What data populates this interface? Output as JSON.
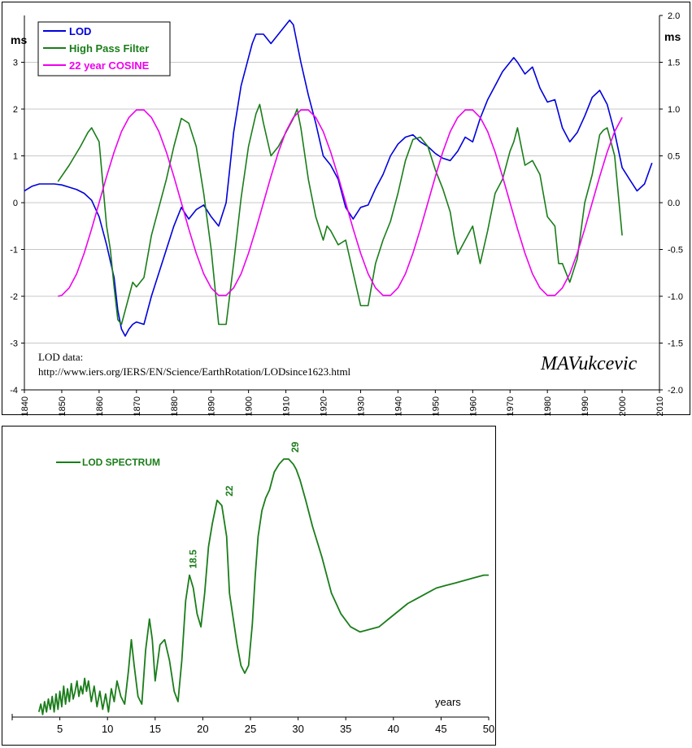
{
  "colors": {
    "lod": "#0000dd",
    "high_pass": "#1a7d1a",
    "cosine": "#ee00ee",
    "grid": "#c8c8c8",
    "spectrum": "#1a7d1a"
  },
  "chart_data": [
    {
      "type": "line",
      "title": "",
      "ylabel_left": "ms",
      "ylabel_right": "ms",
      "x_ticks": [
        "1840",
        "1850",
        "1860",
        "1870",
        "1880",
        "1890",
        "1900",
        "1910",
        "1920",
        "1930",
        "1940",
        "1950",
        "1960",
        "1970",
        "1980",
        "1990",
        "2000",
        "2010"
      ],
      "xlim": [
        1840,
        2010
      ],
      "ylim_left": [
        -4,
        4
      ],
      "y_ticks_left": [
        "-4",
        "-3",
        "-2",
        "-1",
        "0",
        "1",
        "2",
        "3"
      ],
      "ylim_right": [
        -2.0,
        2.0
      ],
      "y_ticks_right": [
        "-2.0",
        "-1.5",
        "-1.0",
        "-0.5",
        "0.0",
        "0.5",
        "1.0",
        "1.5",
        "2.0"
      ],
      "grid": "horizontal",
      "legend": "top-left",
      "legend_entries": [
        "LOD",
        "High Pass Filter",
        "22 year COSINE"
      ],
      "annotation_lines": [
        "LOD data:",
        "http://www.iers.org/IERS/EN/Science/EarthRotation/LODsince1623.html"
      ],
      "signature": "MAVukcevic",
      "series": [
        {
          "name": "LOD",
          "axis": "left",
          "x": [
            1840,
            1842,
            1844,
            1846,
            1848,
            1850,
            1852,
            1854,
            1856,
            1858,
            1860,
            1862,
            1864,
            1865,
            1866,
            1867,
            1868,
            1869,
            1870,
            1872,
            1874,
            1876,
            1878,
            1880,
            1882,
            1884,
            1886,
            1888,
            1890,
            1892,
            1894,
            1896,
            1898,
            1900,
            1901,
            1902,
            1904,
            1906,
            1908,
            1910,
            1911,
            1912,
            1913,
            1914,
            1916,
            1918,
            1920,
            1922,
            1924,
            1926,
            1928,
            1930,
            1932,
            1934,
            1936,
            1938,
            1940,
            1942,
            1944,
            1946,
            1948,
            1950,
            1952,
            1954,
            1956,
            1958,
            1960,
            1962,
            1964,
            1966,
            1968,
            1970,
            1971,
            1972,
            1974,
            1976,
            1978,
            1980,
            1982,
            1984,
            1986,
            1988,
            1990,
            1992,
            1994,
            1996,
            1998,
            2000,
            2002,
            2004,
            2006,
            2008
          ],
          "y": [
            0.25,
            0.35,
            0.4,
            0.4,
            0.4,
            0.38,
            0.33,
            0.28,
            0.2,
            0.05,
            -0.3,
            -0.9,
            -1.6,
            -2.3,
            -2.7,
            -2.85,
            -2.7,
            -2.6,
            -2.55,
            -2.6,
            -2.0,
            -1.5,
            -1.0,
            -0.5,
            -0.1,
            -0.35,
            -0.15,
            -0.05,
            -0.3,
            -0.5,
            0.0,
            1.5,
            2.5,
            3.1,
            3.4,
            3.6,
            3.6,
            3.4,
            3.6,
            3.8,
            3.9,
            3.8,
            3.4,
            3.0,
            2.3,
            1.7,
            1.0,
            0.8,
            0.5,
            -0.1,
            -0.35,
            -0.1,
            -0.05,
            0.3,
            0.6,
            1.0,
            1.25,
            1.4,
            1.45,
            1.3,
            1.2,
            1.05,
            0.95,
            0.9,
            1.1,
            1.4,
            1.3,
            1.8,
            2.2,
            2.5,
            2.8,
            3.0,
            3.1,
            3.0,
            2.75,
            2.9,
            2.45,
            2.15,
            2.2,
            1.6,
            1.3,
            1.5,
            1.85,
            2.25,
            2.4,
            2.1,
            1.5,
            0.75,
            0.5,
            0.25,
            0.4,
            0.85
          ]
        },
        {
          "name": "High Pass Filter",
          "axis": "left",
          "x": [
            1849,
            1852,
            1855,
            1857,
            1858,
            1860,
            1862,
            1863,
            1864,
            1865,
            1866,
            1868,
            1869,
            1870,
            1872,
            1874,
            1876,
            1878,
            1880,
            1882,
            1884,
            1886,
            1888,
            1890,
            1892,
            1894,
            1896,
            1898,
            1900,
            1902,
            1903,
            1904,
            1906,
            1908,
            1910,
            1912,
            1913,
            1914,
            1916,
            1918,
            1920,
            1921,
            1922,
            1924,
            1926,
            1928,
            1930,
            1932,
            1934,
            1936,
            1938,
            1940,
            1942,
            1944,
            1946,
            1948,
            1950,
            1952,
            1954,
            1955,
            1956,
            1958,
            1960,
            1962,
            1964,
            1966,
            1968,
            1970,
            1971,
            1972,
            1974,
            1976,
            1978,
            1980,
            1982,
            1983,
            1984,
            1986,
            1988,
            1990,
            1992,
            1994,
            1995,
            1996,
            1998,
            2000
          ],
          "y": [
            0.45,
            0.8,
            1.2,
            1.5,
            1.6,
            1.3,
            -0.5,
            -1.0,
            -1.8,
            -2.5,
            -2.6,
            -2.0,
            -1.7,
            -1.8,
            -1.6,
            -0.7,
            -0.1,
            0.5,
            1.2,
            1.8,
            1.7,
            1.2,
            0.2,
            -1.0,
            -2.6,
            -2.6,
            -1.3,
            0.1,
            1.2,
            1.9,
            2.1,
            1.7,
            1.0,
            1.2,
            1.5,
            1.8,
            2.0,
            1.6,
            0.5,
            -0.3,
            -0.8,
            -0.5,
            -0.6,
            -0.9,
            -0.8,
            -1.5,
            -2.2,
            -2.2,
            -1.3,
            -0.8,
            -0.4,
            0.2,
            0.9,
            1.35,
            1.4,
            1.2,
            0.7,
            0.3,
            -0.2,
            -0.7,
            -1.1,
            -0.8,
            -0.5,
            -1.3,
            -0.6,
            0.2,
            0.5,
            1.1,
            1.3,
            1.6,
            0.8,
            0.9,
            0.6,
            -0.3,
            -0.5,
            -1.3,
            -1.3,
            -1.7,
            -1.2,
            0.0,
            0.6,
            1.45,
            1.55,
            1.6,
            1.0,
            -0.7
          ]
        },
        {
          "name": "22 year COSINE",
          "axis": "right",
          "x": [
            1849,
            1850,
            1852,
            1854,
            1856,
            1858,
            1860,
            1862,
            1864,
            1866,
            1868,
            1870,
            1872,
            1874,
            1876,
            1878,
            1880,
            1882,
            1884,
            1886,
            1888,
            1890,
            1892,
            1894,
            1896,
            1898,
            1900,
            1902,
            1904,
            1906,
            1908,
            1910,
            1912,
            1914,
            1916,
            1918,
            1920,
            1922,
            1924,
            1926,
            1928,
            1930,
            1932,
            1934,
            1936,
            1938,
            1940,
            1942,
            1944,
            1946,
            1948,
            1950,
            1952,
            1954,
            1956,
            1958,
            1960,
            1962,
            1964,
            1966,
            1968,
            1970,
            1972,
            1974,
            1976,
            1978,
            1980,
            1982,
            1984,
            1986,
            1988,
            1990,
            1992,
            1994,
            1996,
            1998,
            2000
          ],
          "y": [
            -1.0,
            -0.99,
            -0.91,
            -0.76,
            -0.54,
            -0.28,
            0.0,
            0.28,
            0.54,
            0.76,
            0.91,
            0.99,
            0.99,
            0.91,
            0.76,
            0.54,
            0.28,
            0.0,
            -0.28,
            -0.54,
            -0.76,
            -0.91,
            -0.99,
            -0.99,
            -0.91,
            -0.76,
            -0.54,
            -0.28,
            0.0,
            0.28,
            0.54,
            0.76,
            0.91,
            0.99,
            0.99,
            0.91,
            0.76,
            0.54,
            0.28,
            0.0,
            -0.28,
            -0.54,
            -0.76,
            -0.91,
            -0.99,
            -0.99,
            -0.91,
            -0.76,
            -0.54,
            -0.28,
            0.0,
            0.28,
            0.54,
            0.76,
            0.91,
            0.99,
            0.99,
            0.91,
            0.76,
            0.54,
            0.28,
            0.0,
            -0.28,
            -0.54,
            -0.76,
            -0.91,
            -0.99,
            -0.99,
            -0.91,
            -0.76,
            -0.54,
            -0.28,
            0.0,
            0.28,
            0.54,
            0.76,
            0.91
          ]
        }
      ]
    },
    {
      "type": "line",
      "title": "",
      "xlabel": "years",
      "x_ticks": [
        "5",
        "10",
        "15",
        "20",
        "25",
        "30",
        "35",
        "40",
        "45",
        "50"
      ],
      "xlim": [
        0,
        50
      ],
      "ylim": [
        0,
        100
      ],
      "legend": "top-left",
      "legend_entries": [
        "LOD SPECTRUM"
      ],
      "peak_labels": [
        {
          "x": 19.0,
          "y": 55,
          "text": "18.5"
        },
        {
          "x": 22.8,
          "y": 83,
          "text": "22"
        },
        {
          "x": 29.7,
          "y": 100,
          "text": "29"
        }
      ],
      "series": [
        {
          "name": "LOD SPECTRUM",
          "x": [
            2.8,
            3.0,
            3.2,
            3.4,
            3.6,
            3.8,
            4.0,
            4.2,
            4.4,
            4.6,
            4.8,
            5.0,
            5.2,
            5.4,
            5.6,
            5.8,
            6.0,
            6.2,
            6.4,
            6.6,
            6.8,
            7.0,
            7.2,
            7.4,
            7.6,
            7.8,
            8.0,
            8.3,
            8.6,
            8.9,
            9.2,
            9.5,
            9.8,
            10.1,
            10.4,
            10.7,
            11.0,
            11.4,
            11.8,
            12.2,
            12.5,
            12.8,
            13.2,
            13.6,
            14.0,
            14.4,
            14.7,
            15.0,
            15.5,
            16.0,
            16.5,
            17.0,
            17.4,
            17.8,
            18.2,
            18.6,
            19.0,
            19.4,
            19.8,
            20.2,
            20.6,
            21.0,
            21.5,
            22.0,
            22.5,
            22.8,
            23.2,
            23.6,
            24.0,
            24.4,
            24.8,
            25.2,
            25.5,
            25.8,
            26.2,
            26.6,
            27.0,
            27.5,
            28.0,
            28.5,
            29.0,
            29.5,
            29.8,
            30.2,
            30.8,
            31.5,
            32.5,
            33.5,
            34.5,
            35.5,
            36.5,
            37.5,
            38.5,
            39.5,
            40.5,
            41.5,
            42.5,
            43.5,
            44.5,
            45.5,
            46.5,
            47.5,
            48.5,
            49.5,
            50.0
          ],
          "y": [
            2,
            5,
            1,
            6,
            2,
            7,
            3,
            8,
            2,
            9,
            3,
            10,
            4,
            12,
            5,
            11,
            6,
            13,
            7,
            10,
            14,
            8,
            12,
            9,
            15,
            10,
            14,
            6,
            12,
            4,
            10,
            3,
            9,
            2,
            11,
            6,
            14,
            8,
            5,
            18,
            30,
            20,
            8,
            5,
            26,
            38,
            30,
            14,
            28,
            30,
            22,
            10,
            6,
            22,
            45,
            55,
            50,
            40,
            35,
            48,
            66,
            75,
            84,
            82,
            70,
            48,
            38,
            28,
            20,
            17,
            20,
            36,
            55,
            70,
            80,
            85,
            88,
            95,
            98,
            100,
            100,
            98,
            96,
            92,
            84,
            74,
            62,
            48,
            40,
            35,
            33,
            34,
            35,
            38,
            41,
            44,
            46,
            48,
            50,
            51,
            52,
            53,
            54,
            55,
            55
          ]
        }
      ]
    }
  ]
}
